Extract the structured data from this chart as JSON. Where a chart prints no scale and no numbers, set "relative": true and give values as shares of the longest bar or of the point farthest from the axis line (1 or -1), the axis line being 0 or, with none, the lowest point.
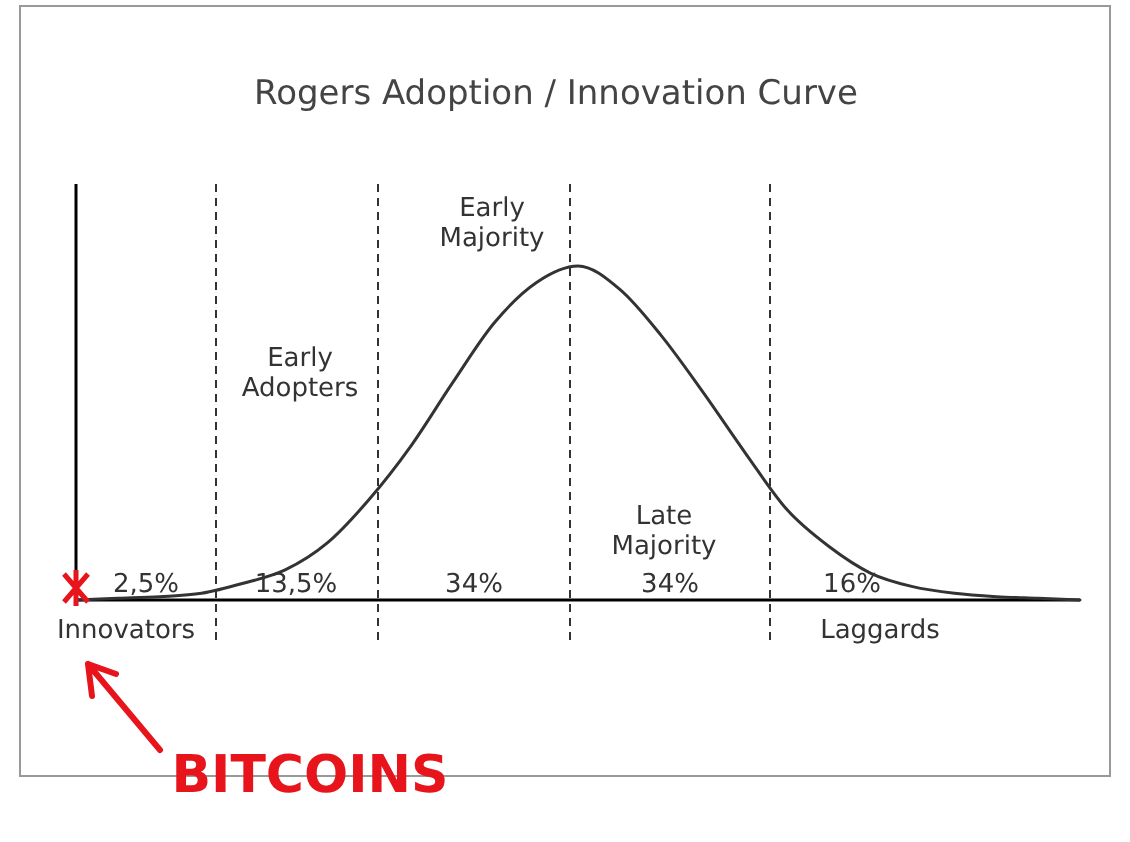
{
  "chart_data": {
    "type": "line",
    "title": "Rogers Adoption / Innovation Curve",
    "relative": true,
    "categories": [
      null,
      null,
      null,
      null,
      null,
      null,
      null,
      null,
      null,
      null,
      null,
      null,
      null,
      null,
      null,
      null,
      null,
      null,
      null,
      null,
      null,
      null,
      null,
      null,
      null
    ],
    "series": [
      {
        "color": "#333333",
        "values": [
          0,
          0.005,
          0.01,
          0.02,
          0.05,
          0.09,
          0.17,
          0.3,
          0.46,
          0.65,
          0.83,
          0.95,
          1,
          0.93,
          0.79,
          0.62,
          0.44,
          0.27,
          0.16,
          0.08,
          0.04,
          0.02,
          0.01,
          0.005,
          0
        ]
      }
    ],
    "annotations": [
      "Early Adopters",
      "Early Majority",
      "Late Majority",
      "2,5%",
      "13,5%",
      "34%",
      "34%",
      "16%",
      "Innovators",
      "Laggards",
      "BITCOINS"
    ]
  }
}
